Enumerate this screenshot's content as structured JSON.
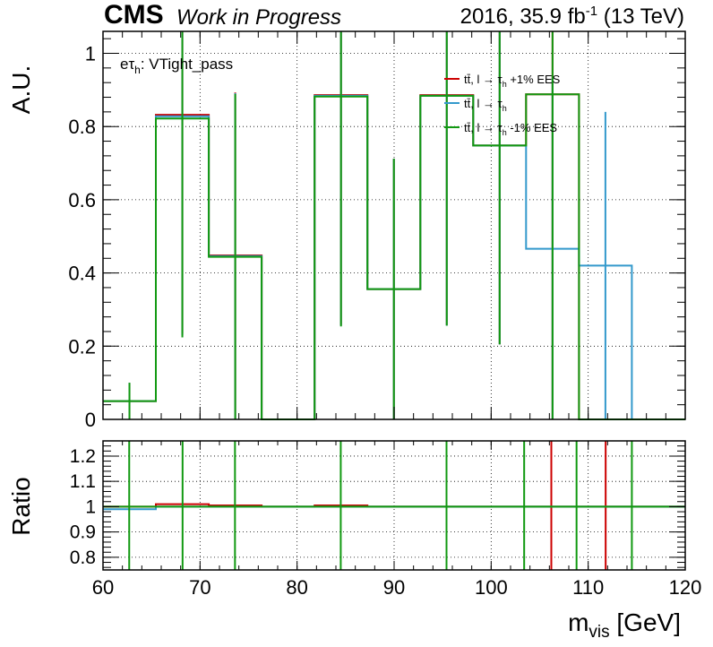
{
  "header": {
    "experiment": "CMS",
    "status": "Work in Progress",
    "lumi_prefix": "2016, 35.9 fb",
    "lumi_sup": "-1",
    "lumi_suffix": " (13 TeV)"
  },
  "chart_data": {
    "type": "histogram",
    "category": "eτ",
    "category_sub": "h",
    "category_suffix": ": VTight_pass",
    "edges": [
      60,
      65.45,
      70.9,
      76.35,
      81.8,
      87.25,
      92.7,
      98.15,
      103.6,
      109.05,
      114.5,
      120
    ],
    "main": {
      "ylabel": "A.U.",
      "ylim": [
        0,
        1.06
      ],
      "yticks": [
        0,
        0.2,
        0.4,
        0.6,
        0.8,
        1
      ],
      "ytick_labels": [
        "0",
        "0.2",
        "0.4",
        "0.6",
        "0.8",
        "1"
      ]
    },
    "ratio": {
      "ylabel": "Ratio",
      "ylim": [
        0.75,
        1.26
      ],
      "yticks": [
        0.8,
        0.9,
        1.0,
        1.1,
        1.2
      ],
      "ytick_labels": [
        "0.8",
        "0.9",
        "1",
        "1.1",
        "1.2"
      ]
    },
    "xlabel_main": "m",
    "xlabel_sub": "vis",
    "xlabel_suffix": " [GeV]",
    "xlim": [
      60,
      120
    ],
    "xticks": [
      60,
      70,
      80,
      90,
      100,
      110,
      120
    ],
    "xtick_labels": [
      "60",
      "70",
      "80",
      "90",
      "100",
      "110",
      "120"
    ],
    "grid": true,
    "series": [
      {
        "legend": [
          "tt̄, l → τ",
          "h",
          " +1% EES"
        ],
        "color": "#cc0000",
        "values": [
          0.05,
          0.832,
          0.448,
          0,
          0.886,
          0.356,
          0.886,
          0.748,
          0.888,
          0,
          0
        ],
        "errors": [
          0.05,
          0.598,
          0.445,
          0,
          0.628,
          0.356,
          0.628,
          0.543,
          0.888,
          0,
          0
        ],
        "ratio": [
          1.0,
          1.01,
          1.005,
          1.0,
          1.005,
          1.0,
          1.0,
          1.0,
          1.0,
          1.0,
          1.0
        ],
        "ratio_bars_x": [
          106.2,
          111.8
        ]
      },
      {
        "legend": [
          "tt̄, l → τ",
          "h",
          ""
        ],
        "color": "#3399cc",
        "values": [
          0.05,
          0.828,
          0.446,
          0,
          0.884,
          0.356,
          0.884,
          0.748,
          0.466,
          0.42,
          0
        ],
        "errors": [
          0.05,
          0.598,
          0.445,
          0,
          0.628,
          0.356,
          0.628,
          0.543,
          0.466,
          0.42,
          0
        ],
        "ratio": [
          0.99,
          1.0,
          1.0,
          1.0,
          1.0,
          1.0,
          1.0,
          1.0,
          1.0,
          1.0,
          1.0
        ]
      },
      {
        "legend": [
          "tt̄, l → τ",
          "h",
          " -1% EES"
        ],
        "color": "#119911",
        "values": [
          0.05,
          0.822,
          0.444,
          0,
          0.882,
          0.356,
          0.884,
          0.748,
          0.888,
          0,
          0
        ],
        "errors": [
          0.05,
          0.598,
          0.445,
          0,
          0.628,
          0.356,
          0.628,
          0.543,
          0.888,
          0,
          0
        ],
        "ratio": [
          1.0,
          1.0,
          1.0,
          1.0,
          1.0,
          1.0,
          1.0,
          1.0,
          1.0,
          1.0,
          1.0
        ],
        "ratio_bars_x": [
          62.7,
          68.2,
          73.6,
          84.5,
          95.4,
          103.4,
          108.8,
          114.5
        ]
      }
    ]
  }
}
